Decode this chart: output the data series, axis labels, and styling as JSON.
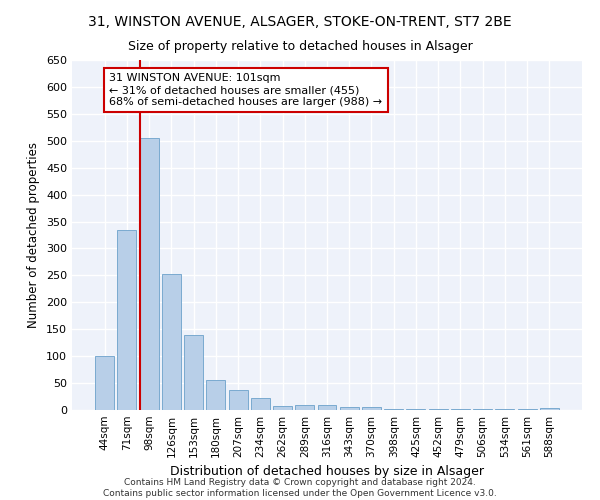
{
  "title_line1": "31, WINSTON AVENUE, ALSAGER, STOKE-ON-TRENT, ST7 2BE",
  "title_line2": "Size of property relative to detached houses in Alsager",
  "xlabel": "Distribution of detached houses by size in Alsager",
  "ylabel": "Number of detached properties",
  "categories": [
    "44sqm",
    "71sqm",
    "98sqm",
    "126sqm",
    "153sqm",
    "180sqm",
    "207sqm",
    "234sqm",
    "262sqm",
    "289sqm",
    "316sqm",
    "343sqm",
    "370sqm",
    "398sqm",
    "425sqm",
    "452sqm",
    "479sqm",
    "506sqm",
    "534sqm",
    "561sqm",
    "588sqm"
  ],
  "values": [
    100,
    335,
    505,
    253,
    140,
    55,
    38,
    22,
    7,
    10,
    10,
    5,
    5,
    2,
    2,
    1,
    1,
    1,
    1,
    1,
    4
  ],
  "bar_color": "#b8cfe8",
  "bar_edge_color": "#7aaad0",
  "red_line_index": 2,
  "annotation_text": "31 WINSTON AVENUE: 101sqm\n← 31% of detached houses are smaller (455)\n68% of semi-detached houses are larger (988) →",
  "annotation_box_color": "#ffffff",
  "annotation_box_edge": "#cc0000",
  "background_color": "#eef2fa",
  "grid_color": "#ffffff",
  "footer": "Contains HM Land Registry data © Crown copyright and database right 2024.\nContains public sector information licensed under the Open Government Licence v3.0.",
  "ylim": [
    0,
    650
  ],
  "yticks": [
    0,
    50,
    100,
    150,
    200,
    250,
    300,
    350,
    400,
    450,
    500,
    550,
    600,
    650
  ]
}
